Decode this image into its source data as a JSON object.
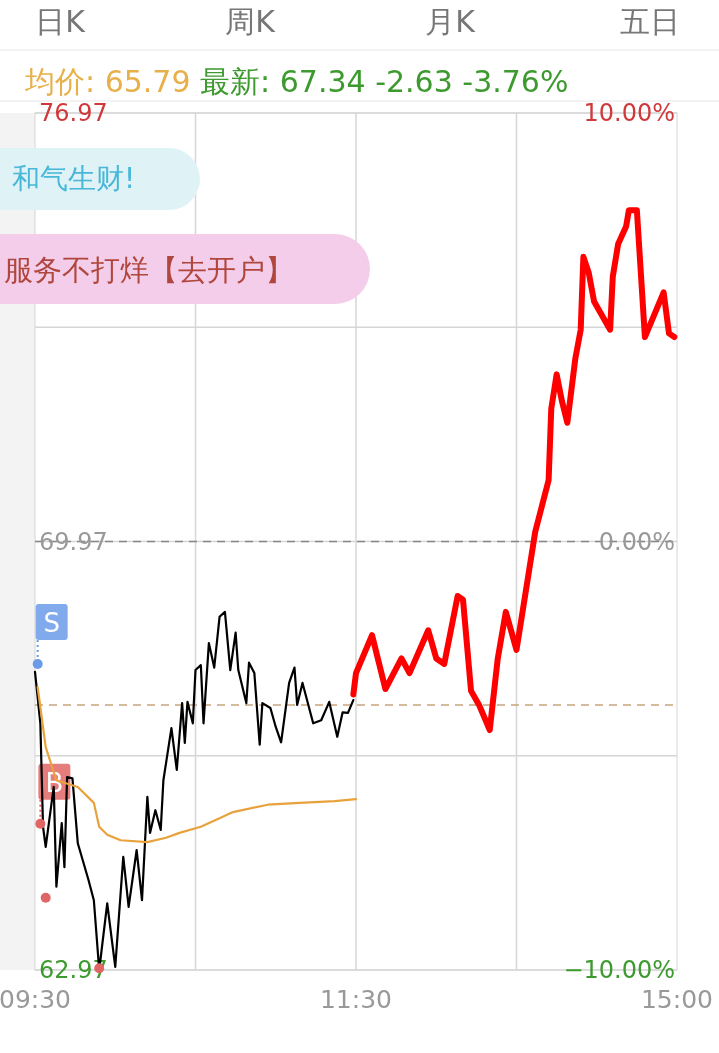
{
  "chart_data": {
    "type": "line",
    "title": "均价: 65.79",
    "subtitle": "最新: 67.34  -2.63  -3.76%",
    "annotations": [
      "日K",
      "周K",
      "月K",
      "五日",
      "和气生财!",
      "服务不打烊【去开户】",
      "S",
      "B"
    ],
    "categories": [
      "09:30",
      null,
      null,
      null,
      null,
      null,
      null,
      null,
      null,
      null,
      null,
      null,
      null,
      null,
      null,
      null,
      null,
      null,
      null,
      null,
      null,
      null,
      null,
      null,
      null,
      null,
      null,
      null,
      null,
      null,
      null,
      null,
      null,
      null,
      null,
      null,
      null,
      null,
      null,
      null,
      null,
      null,
      null,
      null,
      null,
      null,
      null,
      null,
      null,
      null,
      null,
      null,
      null,
      null,
      null,
      null,
      null,
      null,
      null,
      null,
      null,
      null,
      null,
      null,
      null,
      null,
      null,
      null,
      null,
      null,
      null,
      null,
      null,
      null,
      null,
      null,
      null,
      null,
      null,
      null,
      null,
      null,
      null,
      null,
      null,
      null,
      null,
      null,
      null,
      null,
      null,
      null,
      null,
      null,
      null,
      null,
      null,
      null,
      null,
      null,
      null,
      null,
      null,
      null,
      null,
      null,
      null,
      null,
      null,
      null,
      null,
      null,
      null,
      null,
      null,
      null,
      null,
      null,
      null,
      null,
      "11:30",
      null,
      null,
      null,
      null,
      null,
      null,
      null,
      null,
      null,
      null,
      null,
      null,
      null,
      null,
      null,
      null,
      null,
      null,
      null,
      null,
      null,
      null,
      null,
      null,
      null,
      null,
      null,
      null,
      null,
      null,
      null,
      null,
      null,
      null,
      null,
      null,
      null,
      null,
      null,
      null,
      null,
      null,
      null,
      null,
      null,
      null,
      null,
      null,
      null,
      null,
      null,
      null,
      null,
      null,
      null,
      null,
      null,
      null,
      null,
      null,
      null,
      null,
      null,
      null,
      null,
      null,
      null,
      null,
      null,
      null,
      null,
      null,
      null,
      null,
      null,
      null,
      null,
      null,
      null,
      null,
      null,
      null,
      null,
      null,
      null,
      null,
      null,
      null,
      null,
      null,
      null,
      null,
      null,
      null,
      null,
      null,
      null,
      null,
      null,
      null,
      null,
      null,
      null,
      null,
      null,
      null,
      null,
      null,
      null,
      null,
      null,
      null,
      null,
      null,
      null,
      null,
      null,
      null,
      null,
      "15:00"
    ],
    "ylim": [
      62.97,
      76.97
    ],
    "yticks": [
      {
        "value": 62.97,
        "label": "62.97"
      },
      {
        "value": 69.97,
        "label": "69.97"
      },
      {
        "value": 76.97,
        "label": "76.97"
      }
    ],
    "y2lim": [
      -10,
      10
    ],
    "y2ticks": [
      {
        "value": -10,
        "label": "−10.00%"
      },
      {
        "value": 0,
        "label": "0.00%"
      },
      {
        "value": 10,
        "label": "10.00%"
      }
    ],
    "grid": true,
    "ref_lines": [
      {
        "axis": "y",
        "value": 69.97,
        "color": "#888888",
        "line_style": "dashed"
      },
      {
        "axis": "y",
        "value": 67.3,
        "color": "#c8a47e",
        "line_style": "dashed"
      }
    ],
    "series": [
      {
        "color": "#000000",
        "values": [
          67.84,
          null,
          67.0,
          65.31,
          64.98,
          null,
          null,
          65.96,
          64.33,
          null,
          65.37,
          64.65,
          66.12,
          null,
          66.1,
          null,
          65.04,
          null,
          null,
          null,
          64.44,
          null,
          64.11,
          null,
          62.97,
          null,
          null,
          64.06,
          null,
          null,
          63.02,
          null,
          null,
          64.82,
          null,
          64.0,
          null,
          null,
          64.93,
          null,
          64.11,
          null,
          65.8,
          65.21,
          null,
          65.58,
          null,
          65.26,
          66.07,
          null,
          null,
          66.92,
          null,
          66.24,
          null,
          67.33,
          66.68,
          67.35,
          null,
          67.0,
          67.87,
          null,
          67.95,
          67.0,
          null,
          68.31,
          null,
          67.91,
          null,
          68.74,
          null,
          68.82,
          null,
          67.87,
          null,
          68.48,
          67.87,
          null,
          null,
          67.33,
          67.99,
          null,
          67.82,
          null,
          66.65,
          67.33,
          null,
          null,
          67.25,
          null,
          66.94,
          null,
          66.69,
          null,
          null,
          67.66,
          null,
          67.91,
          67.3,
          null,
          67.66,
          null,
          null,
          null,
          67.0,
          null,
          null,
          67.05,
          null,
          null,
          67.35,
          null,
          null,
          66.78,
          null,
          67.18,
          null,
          67.17,
          null,
          67.38,
          null,
          null,
          null,
          null,
          null,
          null,
          null,
          null,
          null,
          null,
          null,
          null,
          null,
          null,
          null,
          null,
          null,
          null,
          null,
          null,
          null,
          null,
          null,
          null,
          null,
          null,
          null,
          null,
          null,
          null,
          null,
          null,
          null,
          null,
          null,
          null,
          null,
          null,
          null,
          null,
          null,
          null,
          null,
          null,
          null,
          null,
          null,
          null,
          null,
          null,
          null,
          null,
          null,
          null,
          null,
          null,
          null,
          null,
          null,
          null,
          null,
          null,
          null,
          null,
          null,
          null,
          null,
          null,
          null,
          null,
          null,
          null,
          null,
          null,
          null,
          null,
          null,
          null,
          null,
          null,
          null,
          null,
          null,
          null,
          null,
          null,
          null,
          null,
          null,
          null,
          null,
          null,
          null,
          null,
          null,
          null,
          null,
          null,
          null,
          null,
          null,
          null,
          null,
          null,
          null,
          null,
          null,
          null,
          null,
          null,
          null,
          null,
          null,
          null,
          null,
          null,
          null,
          null,
          null,
          null,
          null
        ]
      },
      {
        "color": "#e8a23c",
        "values": [
          null,
          67.59,
          null,
          null,
          66.61,
          null,
          null,
          null,
          66.07,
          null,
          null,
          null,
          null,
          null,
          null,
          null,
          65.96,
          null,
          null,
          null,
          null,
          null,
          65.7,
          null,
          65.31,
          null,
          null,
          65.18,
          null,
          null,
          null,
          null,
          65.09,
          null,
          null,
          null,
          null,
          null,
          null,
          null,
          null,
          null,
          65.06,
          null,
          null,
          null,
          null,
          null,
          null,
          65.13,
          null,
          null,
          null,
          null,
          65.21,
          null,
          null,
          null,
          null,
          null,
          null,
          null,
          65.31,
          null,
          null,
          null,
          null,
          null,
          null,
          65.45,
          null,
          null,
          null,
          null,
          65.55,
          null,
          null,
          null,
          null,
          null,
          null,
          null,
          null,
          null,
          null,
          null,
          null,
          65.67,
          null,
          null,
          null,
          null,
          null,
          null,
          null,
          null,
          null,
          null,
          null,
          65.7,
          null,
          null,
          null,
          null,
          null,
          null,
          null,
          null,
          null,
          null,
          null,
          null,
          65.73,
          null,
          null,
          null,
          null,
          null,
          null,
          null,
          65.76,
          null,
          null,
          null,
          null,
          null,
          null,
          null,
          null,
          null,
          null,
          null,
          null,
          null,
          null,
          null,
          null,
          null,
          null,
          null,
          null,
          null,
          null,
          null,
          null,
          null,
          null,
          null,
          null,
          null,
          null,
          null,
          null,
          null,
          null,
          null,
          null,
          null,
          null,
          null,
          null,
          null,
          null,
          null,
          null,
          null,
          null,
          null,
          null,
          null,
          null,
          null,
          null,
          null,
          null,
          null,
          null,
          null,
          null,
          null,
          null,
          null,
          null,
          null,
          null,
          null,
          null,
          null,
          null,
          null,
          null,
          null,
          null,
          null,
          null,
          null,
          null,
          null,
          null,
          null,
          null,
          null,
          null,
          null,
          null,
          null,
          null,
          null,
          null,
          null,
          null,
          null,
          null,
          null,
          null,
          null,
          null,
          null,
          null,
          null,
          null,
          null,
          null,
          null,
          null,
          null,
          null,
          null,
          null,
          null,
          null,
          null,
          null,
          null,
          null,
          null,
          null,
          null,
          null,
          null,
          null
        ]
      },
      {
        "color": "#ff0000",
        "values": [
          null,
          null,
          null,
          null,
          null,
          null,
          null,
          null,
          null,
          null,
          null,
          null,
          null,
          null,
          null,
          null,
          null,
          null,
          null,
          null,
          null,
          null,
          null,
          null,
          null,
          null,
          null,
          null,
          null,
          null,
          null,
          null,
          null,
          null,
          null,
          null,
          null,
          null,
          null,
          null,
          null,
          null,
          null,
          null,
          null,
          null,
          null,
          null,
          null,
          null,
          null,
          null,
          null,
          null,
          null,
          null,
          null,
          null,
          null,
          null,
          null,
          null,
          null,
          null,
          null,
          null,
          null,
          null,
          null,
          null,
          null,
          null,
          null,
          null,
          null,
          null,
          null,
          null,
          null,
          null,
          null,
          null,
          null,
          null,
          null,
          null,
          null,
          null,
          null,
          null,
          null,
          null,
          null,
          null,
          null,
          null,
          null,
          null,
          null,
          null,
          null,
          null,
          null,
          null,
          null,
          null,
          null,
          null,
          null,
          null,
          null,
          null,
          null,
          null,
          null,
          null,
          null,
          null,
          null,
          67.47,
          67.82,
          null,
          null,
          null,
          null,
          null,
          68.44,
          null,
          null,
          null,
          null,
          67.56,
          null,
          null,
          null,
          null,
          null,
          68.06,
          null,
          null,
          67.82,
          null,
          null,
          null,
          null,
          null,
          null,
          68.52,
          null,
          null,
          68.06,
          null,
          null,
          67.97,
          null,
          null,
          null,
          null,
          69.08,
          null,
          69.02,
          null,
          null,
          67.53,
          null,
          null,
          67.3,
          null,
          null,
          null,
          66.89,
          null,
          null,
          68.06,
          null,
          null,
          68.82,
          null,
          null,
          null,
          68.2,
          null,
          null,
          null,
          null,
          null,
          null,
          70.13,
          null,
          null,
          null,
          null,
          70.97,
          72.14,
          null,
          72.7,
          null,
          72.26,
          null,
          71.91,
          null,
          null,
          72.96,
          null,
          73.43,
          74.62,
          null,
          74.36,
          null,
          73.89,
          null,
          null,
          null,
          null,
          null,
          73.43,
          74.3,
          null,
          74.83,
          null,
          null,
          75.12,
          75.38,
          null,
          null,
          75.38,
          null,
          null,
          73.31,
          null,
          null,
          null,
          null,
          null,
          null,
          74.04,
          null,
          73.37,
          null,
          73.31,
          null
        ]
      },
      {
        "type": "scatter",
        "color": "#6a9be8",
        "values": [
          null,
          67.97,
          null,
          null,
          null,
          null,
          null,
          null,
          null,
          null,
          null,
          null,
          null,
          null,
          null,
          null,
          null,
          null,
          null,
          null,
          null,
          null,
          null,
          null,
          null,
          null,
          null,
          null,
          null,
          null,
          null,
          null,
          null,
          null,
          null,
          null,
          null,
          null,
          null,
          null,
          null,
          null,
          null,
          null,
          null,
          null,
          null,
          null,
          null,
          null,
          null,
          null,
          null,
          null,
          null,
          null,
          null,
          null,
          null,
          null,
          null,
          null,
          null,
          null,
          null,
          null,
          null,
          null,
          null,
          null,
          null,
          null,
          null,
          null,
          null,
          null,
          null,
          null,
          null,
          null,
          null,
          null,
          null,
          null,
          null,
          null,
          null,
          null,
          null,
          null,
          null,
          null,
          null,
          null,
          null,
          null,
          null,
          null,
          null,
          null,
          null,
          null,
          null,
          null,
          null,
          null,
          null,
          null,
          null,
          null,
          null,
          null,
          null,
          null,
          null,
          null,
          null,
          null,
          null,
          null,
          null,
          null,
          null,
          null,
          null,
          null,
          null,
          null,
          null,
          null,
          null,
          null,
          null,
          null,
          null,
          null,
          null,
          null,
          null,
          null,
          null,
          null,
          null,
          null,
          null,
          null,
          null,
          null,
          null,
          null,
          null,
          null,
          null,
          null,
          null,
          null,
          null,
          null,
          null,
          null,
          null,
          null,
          null,
          null,
          null,
          null,
          null,
          null,
          null,
          null,
          null,
          null,
          null,
          null,
          null,
          null,
          null,
          null,
          null,
          null,
          null,
          null,
          null,
          null,
          null,
          null,
          null,
          null,
          null,
          null,
          null,
          null,
          null,
          null,
          null,
          null,
          null,
          null,
          null,
          null,
          null,
          null,
          null,
          null,
          null,
          null,
          null,
          null,
          null,
          null,
          null,
          null,
          null,
          null,
          null,
          null,
          null,
          null,
          null,
          null,
          null,
          null,
          null,
          null,
          null,
          null,
          null,
          null,
          null,
          null,
          null,
          null,
          null,
          null,
          null,
          null,
          null,
          null,
          null,
          null,
          null
        ]
      },
      {
        "type": "scatter",
        "color": "#e06666",
        "values": [
          null,
          null,
          65.36,
          null,
          64.15,
          null,
          null,
          null,
          null,
          null,
          null,
          null,
          null,
          null,
          null,
          null,
          null,
          null,
          null,
          null,
          null,
          null,
          null,
          null,
          63.0,
          null,
          null,
          null,
          null,
          null,
          null,
          null,
          null,
          null,
          null,
          null,
          null,
          null,
          null,
          null,
          null,
          null,
          null,
          null,
          null,
          null,
          null,
          null,
          null,
          null,
          null,
          null,
          null,
          null,
          null,
          null,
          null,
          null,
          null,
          null,
          null,
          null,
          null,
          null,
          null,
          null,
          null,
          null,
          null,
          null,
          null,
          null,
          null,
          null,
          null,
          null,
          null,
          null,
          null,
          null,
          null,
          null,
          null,
          null,
          null,
          null,
          null,
          null,
          null,
          null,
          null,
          null,
          null,
          null,
          null,
          null,
          null,
          null,
          null,
          null,
          null,
          null,
          null,
          null,
          null,
          null,
          null,
          null,
          null,
          null,
          null,
          null,
          null,
          null,
          null,
          null,
          null,
          null,
          null,
          null,
          null,
          null,
          null,
          null,
          null,
          null,
          null,
          null,
          null,
          null,
          null,
          null,
          null,
          null,
          null,
          null,
          null,
          null,
          null,
          null,
          null,
          null,
          null,
          null,
          null,
          null,
          null,
          null,
          null,
          null,
          null,
          null,
          null,
          null,
          null,
          null,
          null,
          null,
          null,
          null,
          null,
          null,
          null,
          null,
          null,
          null,
          null,
          null,
          null,
          null,
          null,
          null,
          null,
          null,
          null,
          null,
          null,
          null,
          null,
          null,
          null,
          null,
          null,
          null,
          null,
          null,
          null,
          null,
          null,
          null,
          null,
          null,
          null,
          null,
          null,
          null,
          null,
          null,
          null,
          null,
          null,
          null,
          null,
          null,
          null,
          null,
          null,
          null,
          null,
          null,
          null,
          null,
          null,
          null,
          null,
          null,
          null,
          null,
          null,
          null,
          null,
          null,
          null,
          null,
          null,
          null,
          null,
          null,
          null,
          null,
          null,
          null,
          null,
          null,
          null,
          null,
          null,
          null,
          null,
          null,
          null
        ]
      }
    ]
  }
}
